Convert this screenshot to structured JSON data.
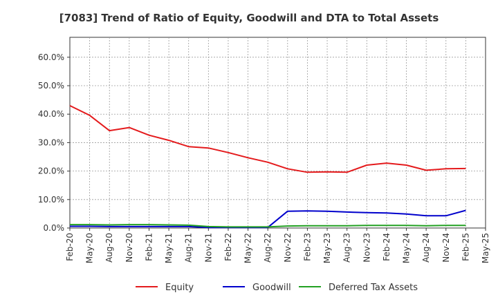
{
  "chart_data": {
    "type": "line",
    "title": "[7083]  Trend of Ratio of Equity, Goodwill and DTA to Total Assets",
    "xlabel": "",
    "ylabel": "",
    "ylim": [
      0,
      0.67
    ],
    "yticks": [
      0.0,
      0.1,
      0.2,
      0.3,
      0.4,
      0.5,
      0.6
    ],
    "ytick_labels": [
      "0.0%",
      "10.0%",
      "20.0%",
      "30.0%",
      "40.0%",
      "50.0%",
      "60.0%"
    ],
    "x": [
      "Feb-20",
      "May-20",
      "Aug-20",
      "Nov-20",
      "Feb-21",
      "May-21",
      "Aug-21",
      "Nov-21",
      "Feb-22",
      "May-22",
      "Aug-22",
      "Nov-22",
      "Feb-23",
      "May-23",
      "Aug-23",
      "Nov-23",
      "Feb-24",
      "May-24",
      "Aug-24",
      "Nov-24",
      "Feb-25",
      "May-25"
    ],
    "grid": true,
    "legend_position": "bottom",
    "series": [
      {
        "name": "Equity",
        "color": "#e41a1c",
        "values": [
          0.43,
          0.396,
          0.342,
          0.353,
          0.326,
          0.308,
          0.286,
          0.281,
          0.265,
          0.247,
          0.231,
          0.208,
          0.196,
          0.197,
          0.196,
          0.221,
          0.228,
          0.221,
          0.203,
          0.208,
          0.209,
          null
        ]
      },
      {
        "name": "Goodwill",
        "color": "#0000cc",
        "values": [
          0.006,
          0.006,
          0.005,
          0.005,
          0.005,
          0.005,
          0.005,
          0.002,
          0.002,
          0.002,
          0.002,
          0.059,
          0.06,
          0.059,
          0.056,
          0.054,
          0.053,
          0.049,
          0.043,
          0.043,
          0.062,
          null
        ]
      },
      {
        "name": "Deferred Tax Assets",
        "color": "#22a022",
        "values": [
          0.012,
          0.012,
          0.011,
          0.012,
          0.012,
          0.011,
          0.01,
          0.005,
          0.004,
          0.004,
          0.004,
          0.007,
          0.008,
          0.008,
          0.008,
          0.009,
          0.009,
          0.009,
          0.008,
          0.009,
          0.009,
          null
        ]
      }
    ]
  }
}
